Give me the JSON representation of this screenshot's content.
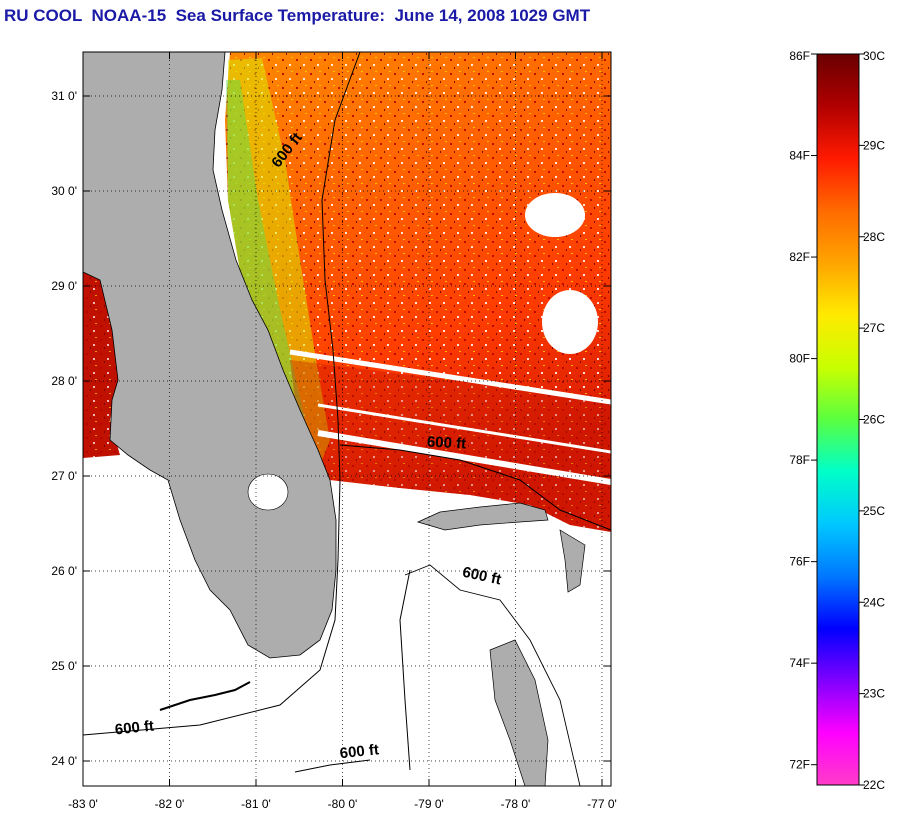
{
  "title": "RU COOL  NOAA-15  Sea Surface Temperature:  June 14, 2008 1029 GMT",
  "map": {
    "lat_ticks": [
      "31 0'",
      "30 0'",
      "29 0'",
      "28 0'",
      "27 0'",
      "26 0'",
      "25 0'",
      "24 0'"
    ],
    "lon_ticks": [
      "-83 0'",
      "-82 0'",
      "-81 0'",
      "-80 0'",
      "-79 0'",
      "-78 0'",
      "-77 0'"
    ],
    "isobath_labels": [
      {
        "text": "600 ft",
        "lon": -80.6,
        "lat": 30.4,
        "rotate": -52
      },
      {
        "text": "600 ft",
        "lon": -78.8,
        "lat": 27.3,
        "rotate": 3
      },
      {
        "text": "600 ft",
        "lon": -78.4,
        "lat": 25.9,
        "rotate": 12
      },
      {
        "text": "600 ft",
        "lon": -82.4,
        "lat": 24.3,
        "rotate": -6
      },
      {
        "text": "600 ft",
        "lon": -79.8,
        "lat": 24.05,
        "rotate": -6
      }
    ],
    "colors": {
      "land": "#adadad",
      "no_data": "#ffffff"
    }
  },
  "colorbar": {
    "celsius_labels": [
      "30C",
      "29C",
      "28C",
      "27C",
      "26C",
      "25C",
      "24C",
      "23C",
      "22C"
    ],
    "fahrenheit_labels": [
      "86F",
      "84F",
      "82F",
      "80F",
      "78F",
      "76F",
      "74F",
      "72F"
    ],
    "celsius_range": [
      22,
      30
    ],
    "gradient": [
      "#6a0000",
      "#b00000",
      "#ff1a00",
      "#ff6a00",
      "#ffa500",
      "#ffea00",
      "#c8ff00",
      "#5aff40",
      "#00ffc8",
      "#00c8ff",
      "#0078ff",
      "#0000ff",
      "#8000ff",
      "#ff00ff",
      "#ff3cc8"
    ]
  }
}
